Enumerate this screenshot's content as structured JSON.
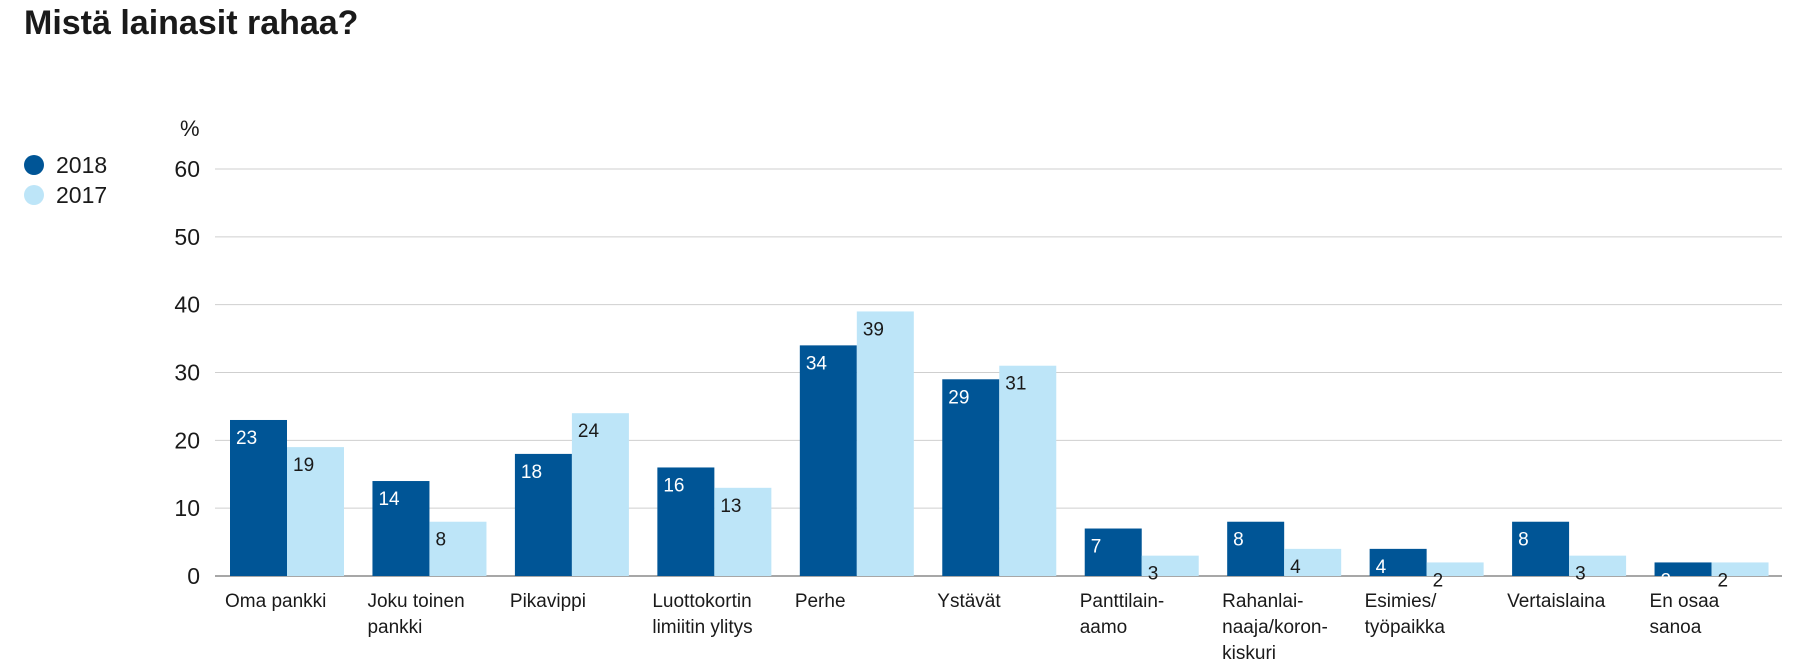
{
  "title": "Mistä lainasit rahaa?",
  "legend": [
    {
      "label": "2018",
      "color": "#005596"
    },
    {
      "label": "2017",
      "color": "#bde5f8"
    }
  ],
  "chart_data": {
    "type": "bar",
    "title": "Mistä lainasit rahaa?",
    "ylabel": "%",
    "xlabel": "",
    "ylim": [
      0,
      60
    ],
    "yticks": [
      0,
      10,
      20,
      30,
      40,
      50,
      60
    ],
    "grid": true,
    "legend_position": "left",
    "categories": [
      [
        "Oma pankki"
      ],
      [
        "Joku toinen",
        "pankki"
      ],
      [
        "Pikavippi"
      ],
      [
        "Luottokortin",
        "limiitin ylitys"
      ],
      [
        "Perhe"
      ],
      [
        "Ystävät"
      ],
      [
        "Panttilain-",
        "aamo"
      ],
      [
        "Rahanlai-",
        "naaja/koron-",
        "kiskuri"
      ],
      [
        "Esimies/",
        "työpaikka"
      ],
      [
        "Vertaislaina"
      ],
      [
        "En osaa",
        "sanoa"
      ]
    ],
    "series": [
      {
        "name": "2018",
        "color": "#005596",
        "label_color": "#ffffff",
        "values": [
          23,
          14,
          18,
          16,
          34,
          29,
          7,
          8,
          4,
          8,
          2
        ]
      },
      {
        "name": "2017",
        "color": "#bde5f8",
        "label_color": "#1a1a1a",
        "values": [
          19,
          8,
          24,
          13,
          39,
          31,
          3,
          4,
          2,
          3,
          2
        ]
      }
    ]
  }
}
